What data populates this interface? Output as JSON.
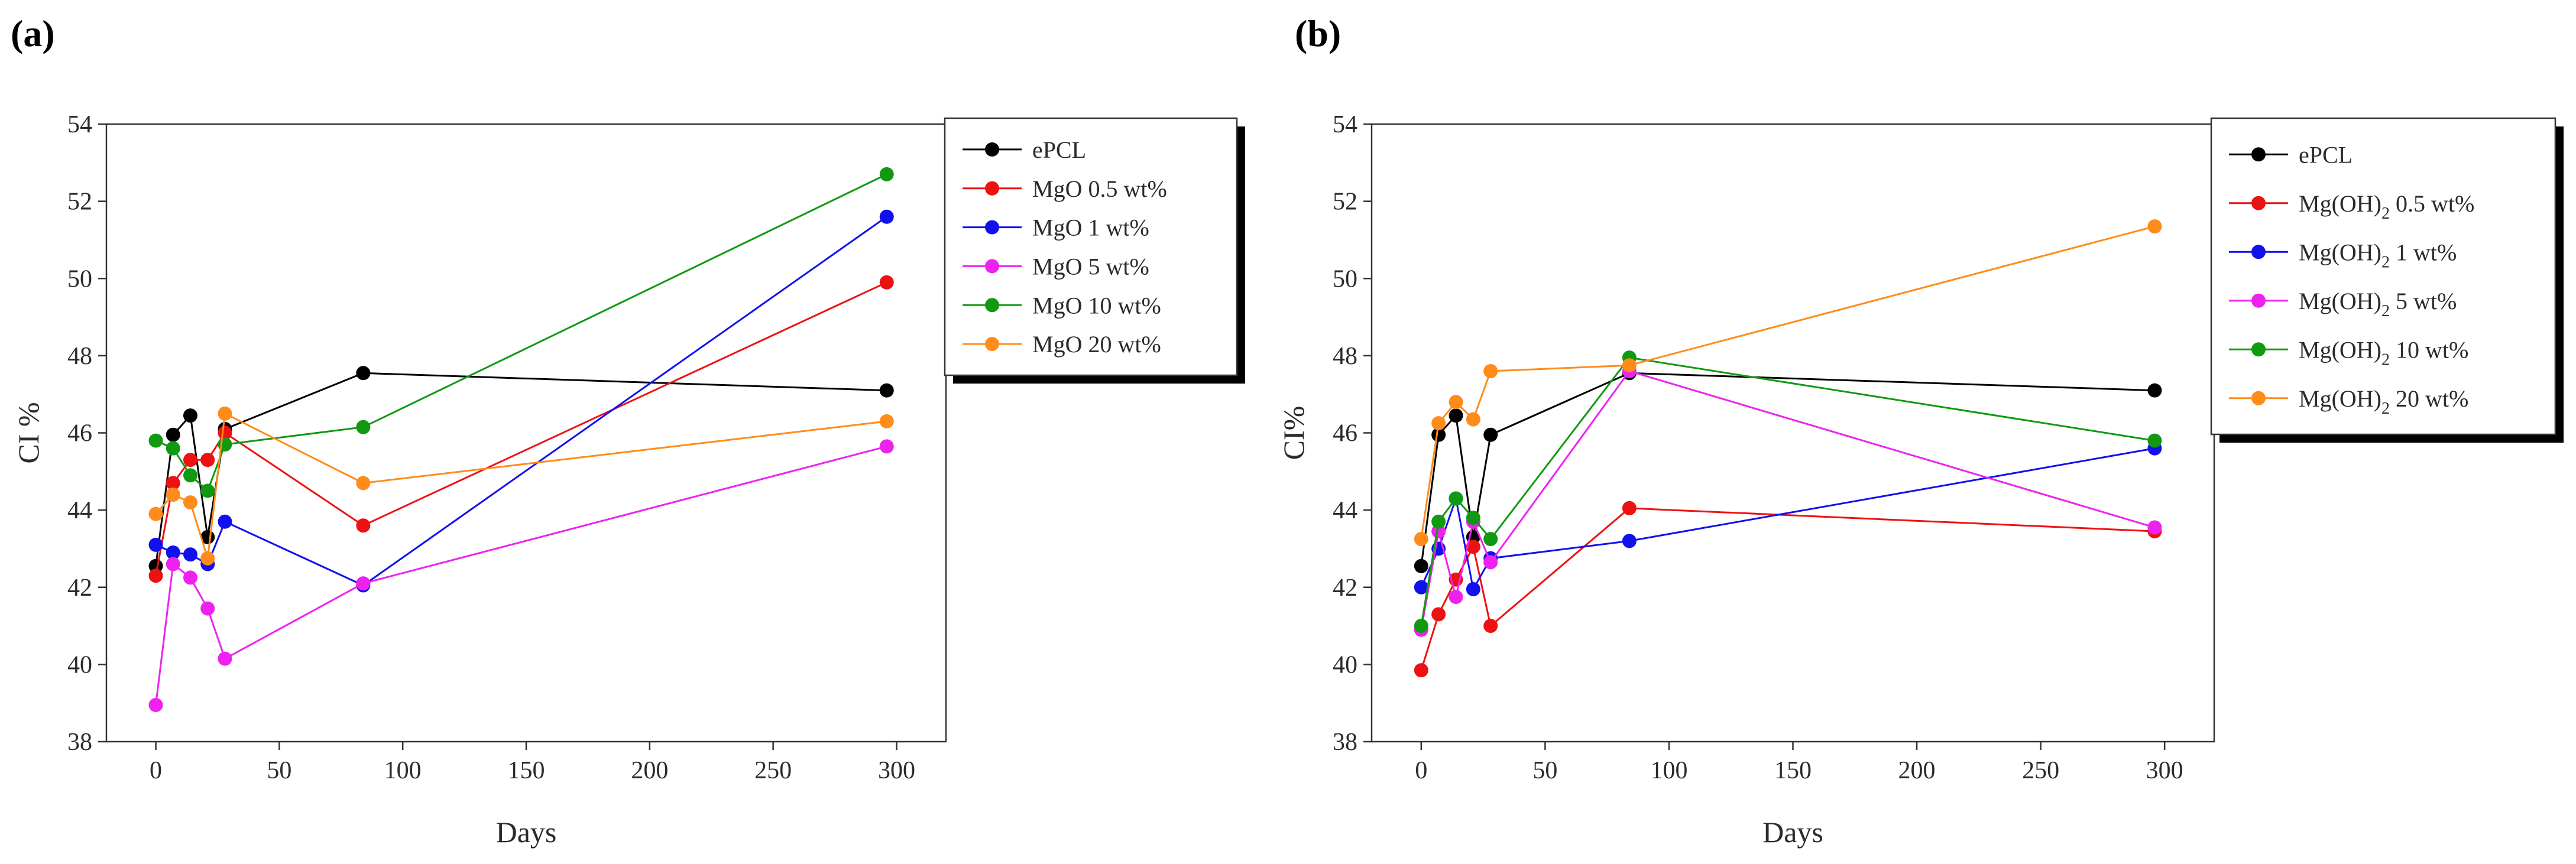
{
  "chart_data": [
    {
      "panel_label": "(a)",
      "type": "line",
      "xlabel": "Days",
      "ylabel": "CI %",
      "xlim": [
        -20,
        320
      ],
      "ylim": [
        38,
        54
      ],
      "xticks": [
        0,
        50,
        100,
        150,
        200,
        250,
        300
      ],
      "yticks": [
        38,
        40,
        42,
        44,
        46,
        48,
        50,
        52,
        54
      ],
      "grid": false,
      "legend_position": "top-right",
      "series": [
        {
          "name": "ePCL",
          "name_base": "ePCL",
          "name_sub": "",
          "name_tail": "",
          "color": "#000000",
          "x": [
            0,
            7,
            14,
            21,
            28,
            84,
            296
          ],
          "y": [
            42.55,
            45.95,
            46.45,
            43.3,
            46.1,
            47.55,
            47.1
          ]
        },
        {
          "name": "MgO 0.5 wt%",
          "name_base": "MgO 0.5 wt%",
          "name_sub": "",
          "name_tail": "",
          "color": "#ee1111",
          "x": [
            0,
            7,
            14,
            21,
            28,
            84,
            296
          ],
          "y": [
            42.3,
            44.7,
            45.3,
            45.3,
            46.0,
            43.6,
            49.9
          ]
        },
        {
          "name": "MgO 1 wt%",
          "name_base": "MgO 1 wt%",
          "name_sub": "",
          "name_tail": "",
          "color": "#1111ee",
          "x": [
            0,
            7,
            14,
            21,
            28,
            84,
            296
          ],
          "y": [
            43.1,
            42.9,
            42.85,
            42.6,
            43.7,
            42.05,
            51.6
          ]
        },
        {
          "name": "MgO 5 wt%",
          "name_base": "MgO 5 wt%",
          "name_sub": "",
          "name_tail": "",
          "color": "#ee22ee",
          "x": [
            0,
            7,
            14,
            21,
            28,
            84,
            296
          ],
          "y": [
            38.95,
            42.6,
            42.25,
            41.45,
            40.15,
            42.1,
            45.65
          ]
        },
        {
          "name": "MgO 10 wt%",
          "name_base": "MgO 10 wt%",
          "name_sub": "",
          "name_tail": "",
          "color": "#119911",
          "x": [
            0,
            7,
            14,
            21,
            28,
            84,
            296
          ],
          "y": [
            45.8,
            45.6,
            44.9,
            44.5,
            45.7,
            46.15,
            52.7
          ]
        },
        {
          "name": "MgO 20 wt%",
          "name_base": "MgO 20 wt%",
          "name_sub": "",
          "name_tail": "",
          "color": "#ff8c1a",
          "x": [
            0,
            7,
            14,
            21,
            28,
            84,
            296
          ],
          "y": [
            43.9,
            44.4,
            44.2,
            42.75,
            46.5,
            44.7,
            46.3
          ]
        }
      ]
    },
    {
      "panel_label": "(b)",
      "type": "line",
      "xlabel": "Days",
      "ylabel": "CI%",
      "xlim": [
        -20,
        320
      ],
      "ylim": [
        38,
        54
      ],
      "xticks": [
        0,
        50,
        100,
        150,
        200,
        250,
        300
      ],
      "yticks": [
        38,
        40,
        42,
        44,
        46,
        48,
        50,
        52,
        54
      ],
      "grid": false,
      "legend_position": "top-right",
      "series": [
        {
          "name": "ePCL",
          "name_base": "ePCL",
          "name_sub": "",
          "name_tail": "",
          "color": "#000000",
          "x": [
            0,
            7,
            14,
            21,
            28,
            84,
            296
          ],
          "y": [
            42.55,
            45.95,
            46.45,
            43.3,
            45.95,
            47.55,
            47.1
          ]
        },
        {
          "name": "Mg(OH)2 0.5 wt%",
          "name_base": "Mg(OH)",
          "name_sub": "2",
          "name_tail": " 0.5 wt%",
          "color": "#ee1111",
          "x": [
            0,
            7,
            14,
            21,
            28,
            84,
            296
          ],
          "y": [
            39.85,
            41.3,
            42.2,
            43.05,
            41.0,
            44.05,
            43.45
          ]
        },
        {
          "name": "Mg(OH)2 1 wt%",
          "name_base": "Mg(OH)",
          "name_sub": "2",
          "name_tail": " 1 wt%",
          "color": "#1111ee",
          "x": [
            0,
            7,
            14,
            21,
            28,
            84,
            296
          ],
          "y": [
            42.0,
            43.0,
            44.3,
            41.95,
            42.75,
            43.2,
            45.6
          ]
        },
        {
          "name": "Mg(OH)2 5 wt%",
          "name_base": "Mg(OH)",
          "name_sub": "2",
          "name_tail": " 5 wt%",
          "color": "#ee22ee",
          "x": [
            0,
            7,
            14,
            21,
            28,
            84,
            296
          ],
          "y": [
            40.9,
            43.45,
            41.75,
            43.7,
            42.65,
            47.6,
            43.55
          ]
        },
        {
          "name": "Mg(OH)2 10 wt%",
          "name_base": "Mg(OH)",
          "name_sub": "2",
          "name_tail": " 10 wt%",
          "color": "#119911",
          "x": [
            0,
            7,
            14,
            21,
            28,
            84,
            296
          ],
          "y": [
            41.0,
            43.7,
            44.3,
            43.8,
            43.25,
            47.95,
            45.8
          ]
        },
        {
          "name": "Mg(OH)2 20 wt%",
          "name_base": "Mg(OH)",
          "name_sub": "2",
          "name_tail": " 20 wt%",
          "color": "#ff8c1a",
          "x": [
            0,
            7,
            14,
            21,
            28,
            84,
            296
          ],
          "y": [
            43.25,
            46.25,
            46.8,
            46.35,
            47.6,
            47.75,
            51.35
          ]
        }
      ]
    }
  ]
}
